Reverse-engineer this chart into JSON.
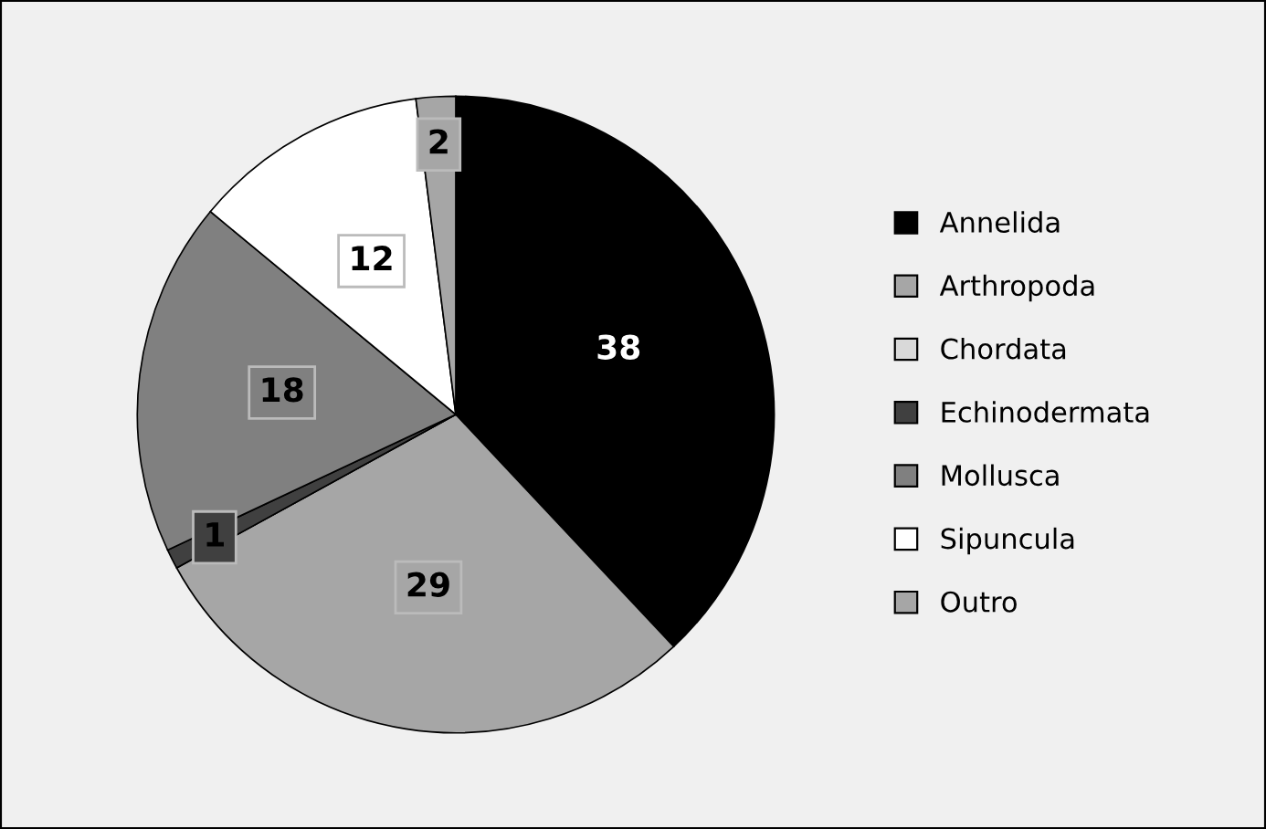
{
  "chart_data": {
    "type": "pie",
    "categories": [
      "Annelida",
      "Arthropoda",
      "Chordata",
      "Echinodermata",
      "Mollusca",
      "Sipuncula",
      "Outro"
    ],
    "values": [
      38,
      29,
      0,
      1,
      18,
      12,
      2
    ],
    "value_labels": [
      "38",
      "29",
      null,
      "1",
      "18",
      "12",
      "2"
    ],
    "colors": [
      "#000000",
      "#a6a6a6",
      "#d9d9d9",
      "#404040",
      "#808080",
      "#ffffff",
      "#a6a6a6"
    ],
    "legend": "right"
  }
}
